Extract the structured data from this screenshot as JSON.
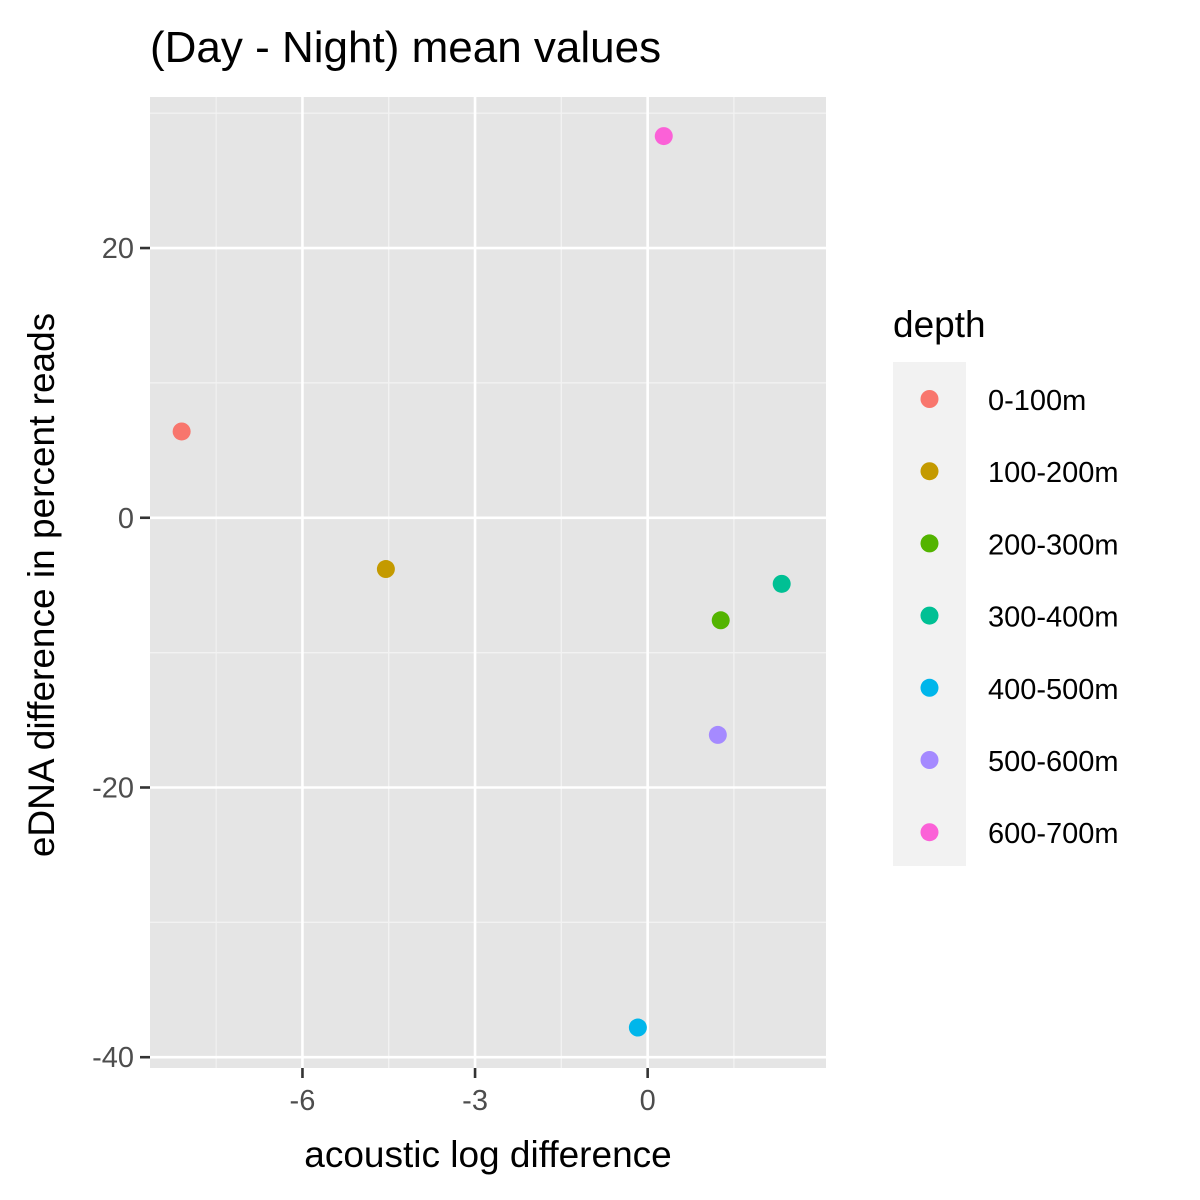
{
  "chart_data": {
    "type": "scatter",
    "title": "(Day - Night) mean values",
    "xlabel": "acoustic log difference",
    "ylabel": "eDNA difference in percent reads",
    "xlim": [
      -8.65,
      3.1
    ],
    "ylim": [
      -40.8,
      31.2
    ],
    "xticks": [
      -6,
      -3,
      0
    ],
    "yticks": [
      -40,
      -20,
      0,
      20
    ],
    "grid": true,
    "legend": {
      "title": "depth",
      "position": "right"
    },
    "series": [
      {
        "name": "0-100m",
        "color": "#F8766D",
        "x": -8.1,
        "y": 6.4
      },
      {
        "name": "100-200m",
        "color": "#C49A00",
        "x": -4.55,
        "y": -3.8
      },
      {
        "name": "200-300m",
        "color": "#53B400",
        "x": 1.27,
        "y": -7.6
      },
      {
        "name": "300-400m",
        "color": "#00C094",
        "x": 2.33,
        "y": -4.9
      },
      {
        "name": "400-500m",
        "color": "#00B6EB",
        "x": -0.17,
        "y": -37.8
      },
      {
        "name": "500-600m",
        "color": "#A58AFF",
        "x": 1.22,
        "y": -16.1
      },
      {
        "name": "600-700m",
        "color": "#FB61D7",
        "x": 0.28,
        "y": 28.3
      }
    ]
  }
}
